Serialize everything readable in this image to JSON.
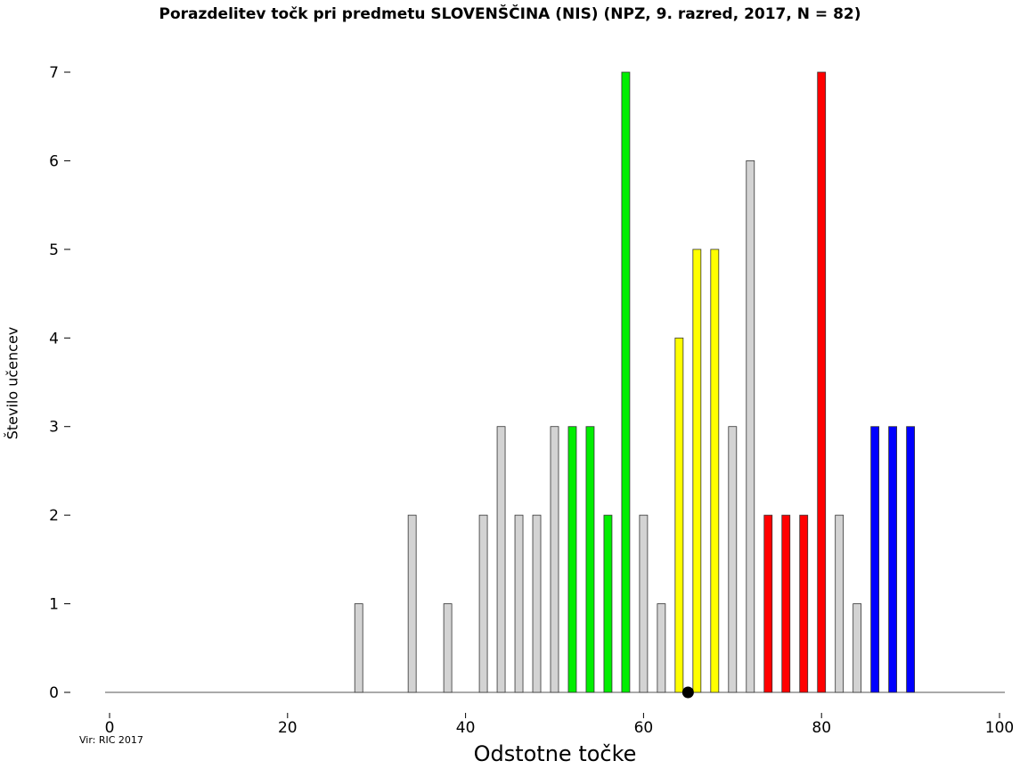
{
  "chart_data": {
    "type": "bar",
    "title": "Porazdelitev točk pri predmetu SLOVENŠČINA (NIS) (NPZ, 9. razred, 2017, N = 82)",
    "xlabel": "Odstotne točke",
    "ylabel": "Število učencev",
    "xlim": [
      0,
      100
    ],
    "ylim": [
      0,
      7
    ],
    "x_ticks": [
      0,
      20,
      40,
      60,
      80,
      100
    ],
    "y_ticks": [
      0,
      1,
      2,
      3,
      4,
      5,
      6,
      7
    ],
    "x": [
      28,
      34,
      38,
      42,
      44,
      46,
      48,
      50,
      52,
      54,
      56,
      58,
      60,
      62,
      64,
      66,
      68,
      70,
      72,
      74,
      76,
      78,
      80,
      82,
      84,
      86,
      88,
      90
    ],
    "values": [
      1,
      2,
      1,
      2,
      3,
      2,
      2,
      3,
      3,
      3,
      2,
      7,
      2,
      1,
      4,
      5,
      5,
      3,
      6,
      2,
      2,
      2,
      7,
      2,
      1,
      3,
      3,
      3
    ],
    "bar_colors": [
      "#d3d3d3",
      "#d3d3d3",
      "#d3d3d3",
      "#d3d3d3",
      "#d3d3d3",
      "#d3d3d3",
      "#d3d3d3",
      "#d3d3d3",
      "#00ee00",
      "#00ee00",
      "#00ee00",
      "#00ee00",
      "#d3d3d3",
      "#d3d3d3",
      "#ffff00",
      "#ffff00",
      "#ffff00",
      "#d3d3d3",
      "#d3d3d3",
      "#ff0000",
      "#ff0000",
      "#ff0000",
      "#ff0000",
      "#d3d3d3",
      "#d3d3d3",
      "#0000ff",
      "#0000ff",
      "#0000ff"
    ],
    "marker_x": 65,
    "source": "Vir: RIC 2017",
    "grid": false,
    "legend": "none"
  }
}
